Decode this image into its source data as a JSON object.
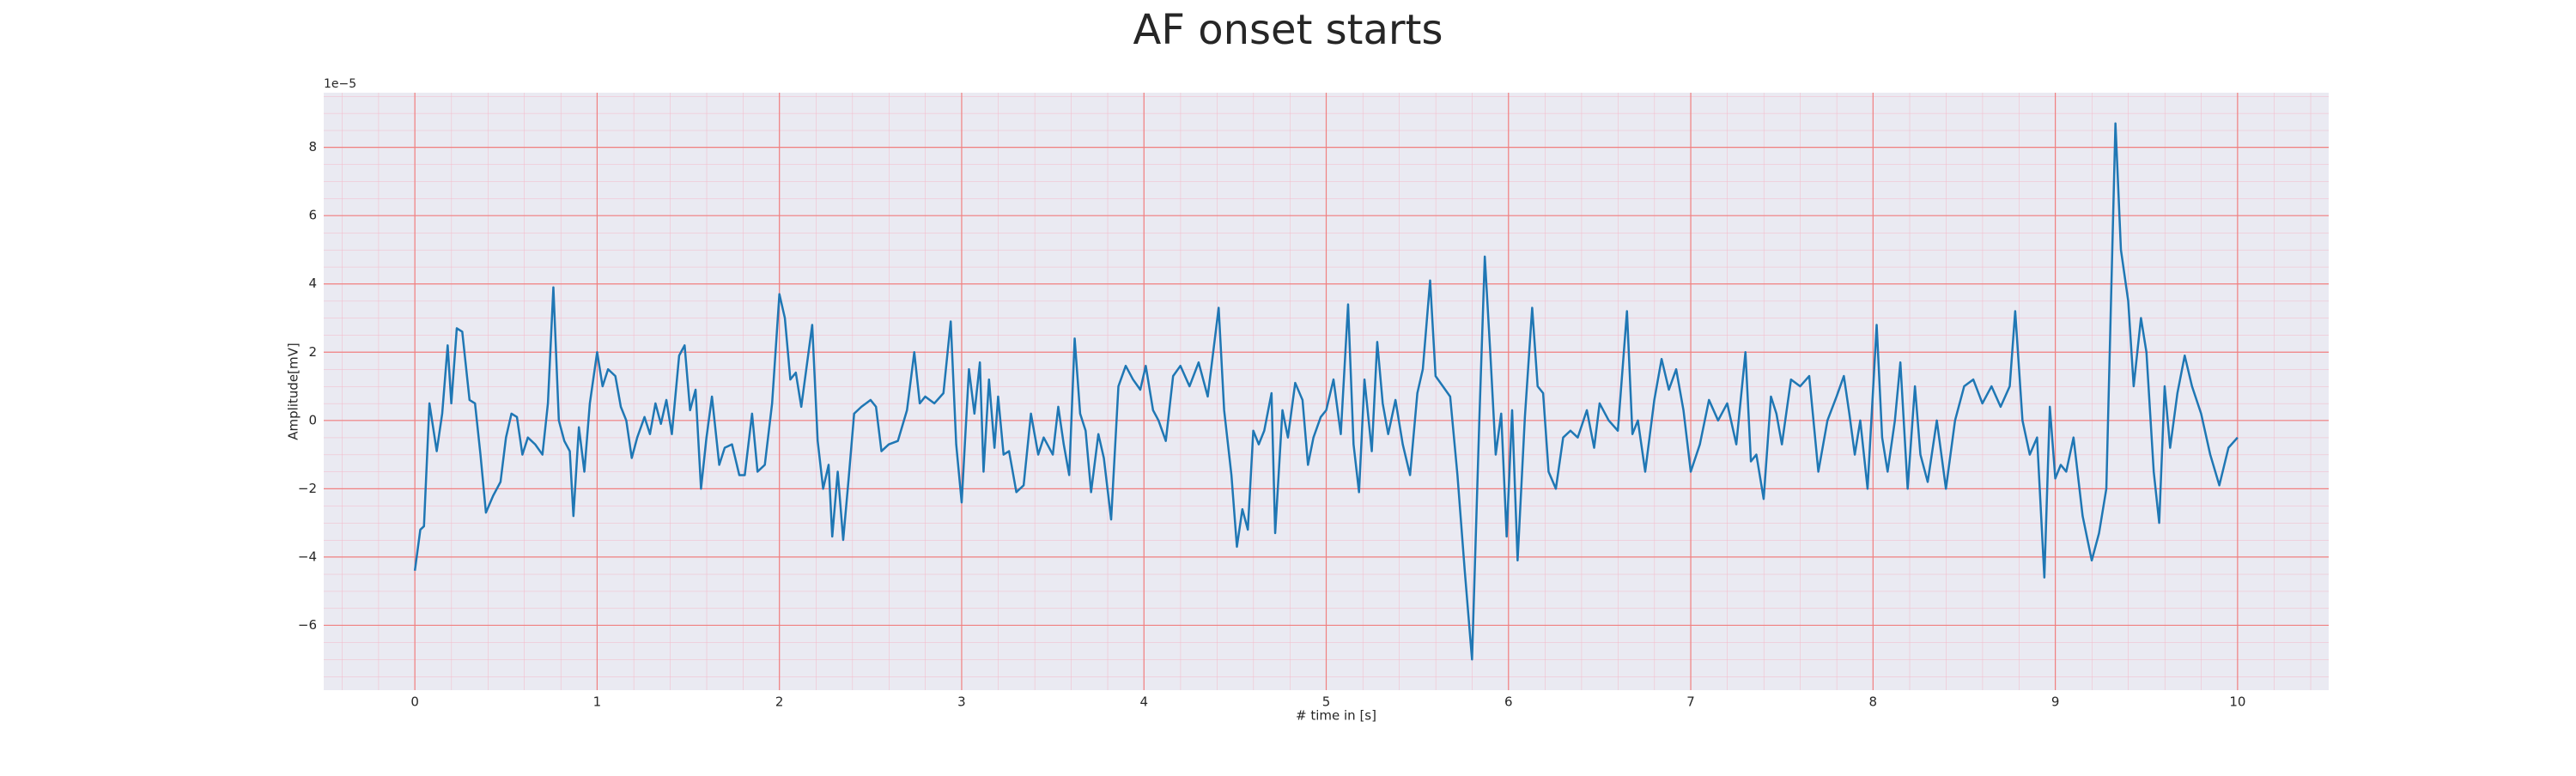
{
  "chart_data": {
    "type": "line",
    "title": "AF onset starts",
    "xlabel": "# time in [s]",
    "ylabel": "Amplitude[mV]",
    "offset_label": "1e−5",
    "color": "#1f77b4",
    "grid": true,
    "grid_color": "#f08080",
    "background": "#eaeaf2",
    "xlim": [
      -0.5,
      10.5
    ],
    "ylim": [
      -7.9,
      9.6
    ],
    "xticks": [
      0,
      1,
      2,
      3,
      4,
      5,
      6,
      7,
      8,
      9,
      10
    ],
    "yticks": [
      {
        "value": -6,
        "label": "−6"
      },
      {
        "value": -4,
        "label": "−4"
      },
      {
        "value": -2,
        "label": "−2"
      },
      0,
      2,
      4,
      6,
      8
    ],
    "x": [
      0,
      0.03,
      0.05,
      0.08,
      0.12,
      0.15,
      0.18,
      0.2,
      0.23,
      0.26,
      0.3,
      0.33,
      0.36,
      0.39,
      0.43,
      0.47,
      0.5,
      0.53,
      0.56,
      0.59,
      0.62,
      0.66,
      0.7,
      0.73,
      0.76,
      0.79,
      0.82,
      0.85,
      0.87,
      0.9,
      0.93,
      0.96,
      1.0,
      1.03,
      1.06,
      1.1,
      1.13,
      1.16,
      1.19,
      1.22,
      1.26,
      1.29,
      1.32,
      1.35,
      1.38,
      1.41,
      1.45,
      1.48,
      1.51,
      1.54,
      1.57,
      1.6,
      1.63,
      1.67,
      1.7,
      1.74,
      1.78,
      1.81,
      1.85,
      1.88,
      1.92,
      1.96,
      2.0,
      2.03,
      2.06,
      2.09,
      2.12,
      2.15,
      2.18,
      2.21,
      2.24,
      2.27,
      2.29,
      2.32,
      2.35,
      2.38,
      2.41,
      2.45,
      2.5,
      2.53,
      2.56,
      2.6,
      2.65,
      2.7,
      2.74,
      2.77,
      2.8,
      2.85,
      2.9,
      2.94,
      2.97,
      3.0,
      3.04,
      3.07,
      3.1,
      3.12,
      3.15,
      3.18,
      3.2,
      3.23,
      3.26,
      3.3,
      3.34,
      3.38,
      3.42,
      3.45,
      3.5,
      3.53,
      3.56,
      3.59,
      3.62,
      3.65,
      3.68,
      3.71,
      3.75,
      3.78,
      3.82,
      3.86,
      3.9,
      3.94,
      3.98,
      4.01,
      4.05,
      4.08,
      4.12,
      4.16,
      4.2,
      4.25,
      4.3,
      4.35,
      4.41,
      4.44,
      4.48,
      4.51,
      4.54,
      4.57,
      4.6,
      4.63,
      4.66,
      4.7,
      4.72,
      4.76,
      4.79,
      4.83,
      4.87,
      4.9,
      4.93,
      4.97,
      5.0,
      5.04,
      5.08,
      5.12,
      5.15,
      5.18,
      5.21,
      5.25,
      5.28,
      5.31,
      5.34,
      5.38,
      5.42,
      5.46,
      5.5,
      5.53,
      5.57,
      5.6,
      5.64,
      5.68,
      5.72,
      5.76,
      5.8,
      5.84,
      5.87,
      5.9,
      5.93,
      5.96,
      5.99,
      6.02,
      6.05,
      6.09,
      6.13,
      6.16,
      6.19,
      6.22,
      6.26,
      6.3,
      6.34,
      6.38,
      6.43,
      6.47,
      6.5,
      6.55,
      6.6,
      6.65,
      6.68,
      6.71,
      6.75,
      6.8,
      6.84,
      6.88,
      6.92,
      6.96,
      7.0,
      7.05,
      7.1,
      7.15,
      7.2,
      7.25,
      7.3,
      7.33,
      7.36,
      7.4,
      7.44,
      7.47,
      7.5,
      7.55,
      7.6,
      7.65,
      7.7,
      7.75,
      7.8,
      7.84,
      7.87,
      7.9,
      7.93,
      7.97,
      8.02,
      8.05,
      8.08,
      8.12,
      8.15,
      8.19,
      8.23,
      8.26,
      8.3,
      8.35,
      8.4,
      8.45,
      8.5,
      8.55,
      8.6,
      8.65,
      8.7,
      8.75,
      8.78,
      8.82,
      8.86,
      8.9,
      8.94,
      8.97,
      9.0,
      9.03,
      9.06,
      9.1,
      9.15,
      9.2,
      9.24,
      9.28,
      9.33,
      9.36,
      9.4,
      9.43,
      9.47,
      9.5,
      9.54,
      9.57,
      9.6,
      9.63,
      9.67,
      9.71,
      9.75,
      9.8,
      9.85,
      9.9,
      9.95,
      10.0
    ],
    "values": [
      -4.4,
      -3.2,
      -3.1,
      0.5,
      -0.9,
      0.2,
      2.2,
      0.5,
      2.7,
      2.6,
      0.6,
      0.5,
      -1.0,
      -2.7,
      -2.2,
      -1.8,
      -0.5,
      0.2,
      0.1,
      -1.0,
      -0.5,
      -0.7,
      -1.0,
      0.5,
      3.9,
      0.0,
      -0.6,
      -0.9,
      -2.8,
      -0.2,
      -1.5,
      0.5,
      2.0,
      1.0,
      1.5,
      1.3,
      0.4,
      0.0,
      -1.1,
      -0.5,
      0.1,
      -0.4,
      0.5,
      -0.1,
      0.6,
      -0.4,
      1.9,
      2.2,
      0.3,
      0.9,
      -2.0,
      -0.5,
      0.7,
      -1.3,
      -0.8,
      -0.7,
      -1.6,
      -1.6,
      0.2,
      -1.5,
      -1.3,
      0.5,
      3.7,
      3.0,
      1.2,
      1.4,
      0.4,
      1.6,
      2.8,
      -0.6,
      -2.0,
      -1.3,
      -3.4,
      -1.5,
      -3.5,
      -1.7,
      0.2,
      0.4,
      0.6,
      0.4,
      -0.9,
      -0.7,
      -0.6,
      0.3,
      2.0,
      0.5,
      0.7,
      0.5,
      0.8,
      2.9,
      -0.7,
      -2.4,
      1.5,
      0.2,
      1.7,
      -1.5,
      1.2,
      -0.8,
      0.7,
      -1.0,
      -0.9,
      -2.1,
      -1.9,
      0.2,
      -1.0,
      -0.5,
      -1.0,
      0.4,
      -0.7,
      -1.6,
      2.4,
      0.2,
      -0.3,
      -2.1,
      -0.4,
      -1.1,
      -2.9,
      1.0,
      1.6,
      1.2,
      0.9,
      1.6,
      0.3,
      0.0,
      -0.6,
      1.3,
      1.6,
      1.0,
      1.7,
      0.7,
      3.3,
      0.3,
      -1.6,
      -3.7,
      -2.6,
      -3.2,
      -0.3,
      -0.7,
      -0.3,
      0.8,
      -3.3,
      0.3,
      -0.5,
      1.1,
      0.6,
      -1.3,
      -0.5,
      0.1,
      0.3,
      1.2,
      -0.4,
      3.4,
      -0.7,
      -2.1,
      1.2,
      -0.9,
      2.3,
      0.5,
      -0.4,
      0.6,
      -0.7,
      -1.6,
      0.8,
      1.5,
      4.1,
      1.3,
      1.0,
      0.7,
      -1.6,
      -4.4,
      -7.0,
      0.0,
      4.8,
      2.0,
      -1.0,
      0.2,
      -3.4,
      0.3,
      -4.1,
      0.1,
      3.3,
      1.0,
      0.8,
      -1.5,
      -2.0,
      -0.5,
      -0.3,
      -0.5,
      0.3,
      -0.8,
      0.5,
      0.0,
      -0.3,
      3.2,
      -0.4,
      0.0,
      -1.5,
      0.6,
      1.8,
      0.9,
      1.5,
      0.3,
      -1.5,
      -0.7,
      0.6,
      0.0,
      0.5,
      -0.7,
      2.0,
      -1.2,
      -1.0,
      -2.3,
      0.7,
      0.2,
      -0.7,
      1.2,
      1.0,
      1.3,
      -1.5,
      0.0,
      0.7,
      1.3,
      0.2,
      -1.0,
      0.0,
      -2.0,
      2.8,
      -0.5,
      -1.5,
      0.0,
      1.7,
      -2.0,
      1.0,
      -1.0,
      -1.8,
      0.0,
      -2.0,
      0.0,
      1.0,
      1.2,
      0.5,
      1.0,
      0.4,
      1.0,
      3.2,
      0.0,
      -1.0,
      -0.5,
      -4.6,
      0.4,
      -1.7,
      -1.3,
      -1.5,
      -0.5,
      -2.8,
      -4.1,
      -3.3,
      -2.0,
      8.7,
      5.0,
      3.5,
      1.0,
      3.0,
      2.0,
      -1.5,
      -3.0,
      1.0,
      -0.8,
      0.8,
      1.9,
      1.0,
      0.2,
      -1.0,
      -1.9,
      -0.8,
      -0.5
    ]
  }
}
